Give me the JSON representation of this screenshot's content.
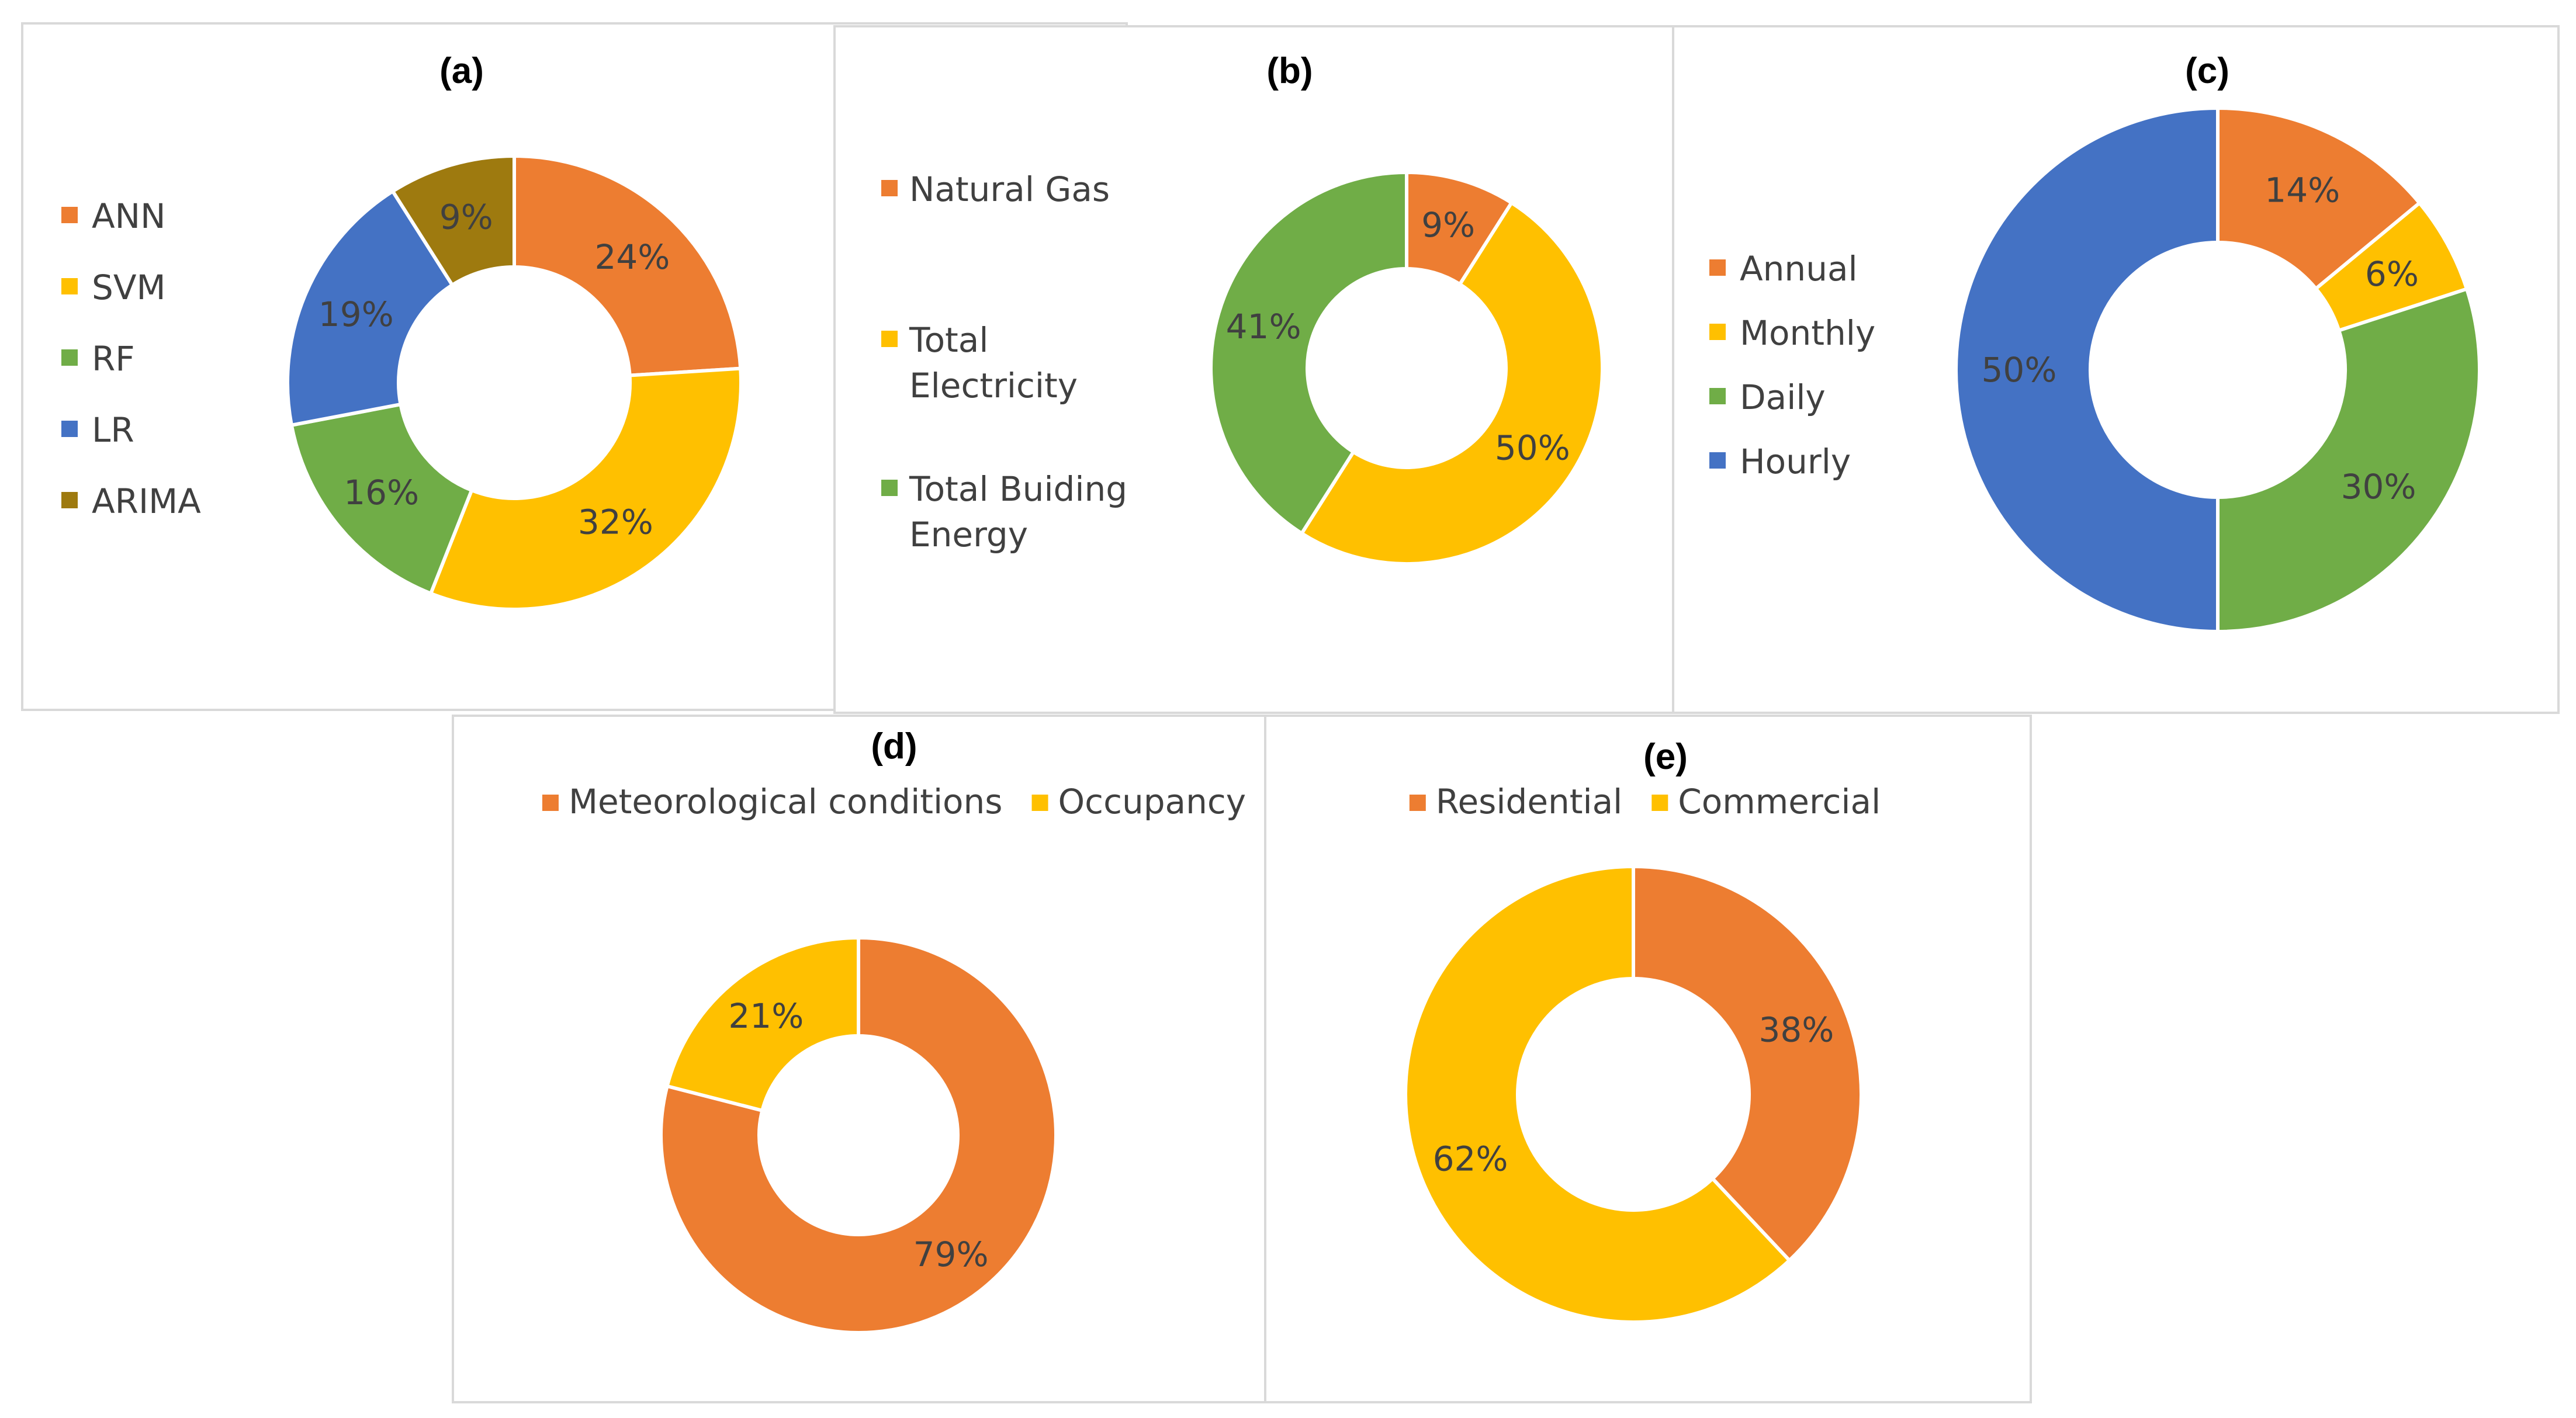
{
  "chart_data": [
    {
      "id": "a",
      "type": "donut",
      "title": "(a)",
      "categories": [
        "ANN",
        "SVM",
        "RF",
        "LR",
        "ARIMA"
      ],
      "values": [
        24,
        32,
        16,
        19,
        9
      ],
      "labels": [
        "24%",
        "32%",
        "16%",
        "19%",
        "9%"
      ],
      "colors": [
        "#ed7d31",
        "#ffc000",
        "#70ad47",
        "#4472c4",
        "#9e7a0f"
      ],
      "legend_position": "left"
    },
    {
      "id": "b",
      "type": "donut",
      "title": "(b)",
      "categories": [
        "Natural Gas",
        "Total Electricity",
        "Total Buiding Energy"
      ],
      "legend_lines": [
        [
          "Natural Gas"
        ],
        [
          "Total",
          "Electricity"
        ],
        [
          "Total Buiding",
          "Energy"
        ]
      ],
      "values": [
        9,
        50,
        41
      ],
      "labels": [
        "9%",
        "50%",
        "41%"
      ],
      "colors": [
        "#ed7d31",
        "#ffc000",
        "#70ad47"
      ],
      "legend_position": "left"
    },
    {
      "id": "c",
      "type": "donut",
      "title": "(c)",
      "categories": [
        "Annual",
        "Monthly",
        "Daily",
        "Hourly"
      ],
      "values": [
        14,
        6,
        30,
        50
      ],
      "labels": [
        "14%",
        "6%",
        "30%",
        "50%"
      ],
      "colors": [
        "#ed7d31",
        "#ffc000",
        "#70ad47",
        "#4472c4"
      ],
      "legend_position": "left"
    },
    {
      "id": "d",
      "type": "donut",
      "title": "(d)",
      "categories": [
        "Meteorological conditions",
        "Occupancy"
      ],
      "values": [
        79,
        21
      ],
      "labels": [
        "79%",
        "21%"
      ],
      "colors": [
        "#ed7d31",
        "#ffc000"
      ],
      "legend_position": "top"
    },
    {
      "id": "e",
      "type": "donut",
      "title": "(e)",
      "categories": [
        "Residential",
        "Commercial"
      ],
      "values": [
        38,
        62
      ],
      "labels": [
        "38%",
        "62%"
      ],
      "colors": [
        "#ed7d31",
        "#ffc000"
      ],
      "legend_position": "top"
    }
  ]
}
